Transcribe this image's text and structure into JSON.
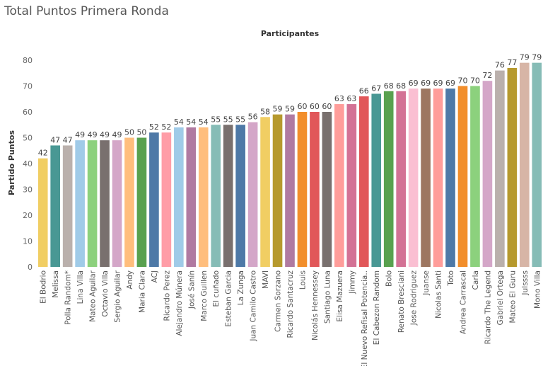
{
  "chart_data": {
    "type": "bar",
    "title": "Total Puntos Primera Ronda",
    "xlabel": "Participantes",
    "ylabel": "Partido Puntos",
    "ylim": [
      0,
      84
    ],
    "yticks": [
      0,
      10,
      20,
      30,
      40,
      50,
      60,
      70,
      80
    ],
    "grid": false,
    "categories": [
      "El Bodrio",
      "Melissa",
      "Polla Random*",
      "Lina Villa",
      "Mateo Aguilar",
      "Octavio Villa",
      "Sergio Aguilar",
      "Andy",
      "Maria Clara",
      "ACJ",
      "Ricardo Perez",
      "Alejandro Múnera",
      "José Sanín",
      "Marco Guillen",
      "El cuñado",
      "Esteban Garcia",
      "La Zunga",
      "Juan Camilo Castro",
      "MAVI",
      "Carmen Sorzano",
      "Ricardo Santacruz",
      "Louis",
      "Nicolás Hennessey",
      "Santiago Luna",
      "Elisa Mazuera",
      "Jimmy",
      "El Nuevo Refisal Potencia..",
      "El Cabezon Random",
      "Bolo",
      "Renato Bresciani",
      "Jose Rodriguez",
      "Juanse",
      "Nicolas Santi",
      "Toto",
      "Andrea Carrascal",
      "Carla",
      "Ricardo The Legend",
      "Gabriel Ortega",
      "Mateo El Guru",
      "Julssss",
      "Mono Villa"
    ],
    "values": [
      42,
      47,
      47,
      49,
      49,
      49,
      49,
      50,
      50,
      52,
      52,
      54,
      54,
      54,
      55,
      55,
      55,
      56,
      58,
      59,
      59,
      60,
      60,
      60,
      63,
      63,
      66,
      67,
      68,
      68,
      69,
      69,
      69,
      69,
      70,
      70,
      72,
      76,
      77,
      79,
      79
    ],
    "colors": [
      "#F1CE63",
      "#499894",
      "#BAB0AC",
      "#A0CBE8",
      "#8CD17D",
      "#79706E",
      "#D4A6C8",
      "#FFBE7D",
      "#59A14F",
      "#4E79A7",
      "#FF9DA7",
      "#A0CBE8",
      "#B07AA1",
      "#FFBE7D",
      "#86BCB6",
      "#79706E",
      "#4E79A7",
      "#D4A6C8",
      "#F1CE63",
      "#B6992D",
      "#B07AA1",
      "#F28E2B",
      "#E15759",
      "#79706E",
      "#FF9D9A",
      "#D37295",
      "#E15759",
      "#499894",
      "#59A14F",
      "#D37295",
      "#FABFD2",
      "#9D7660",
      "#FF9D9A",
      "#4E79A7",
      "#F28E2B",
      "#8CD17D",
      "#D4A6C8",
      "#BAB0AC",
      "#B6992D",
      "#D7B5A6",
      "#86BCB6"
    ]
  }
}
